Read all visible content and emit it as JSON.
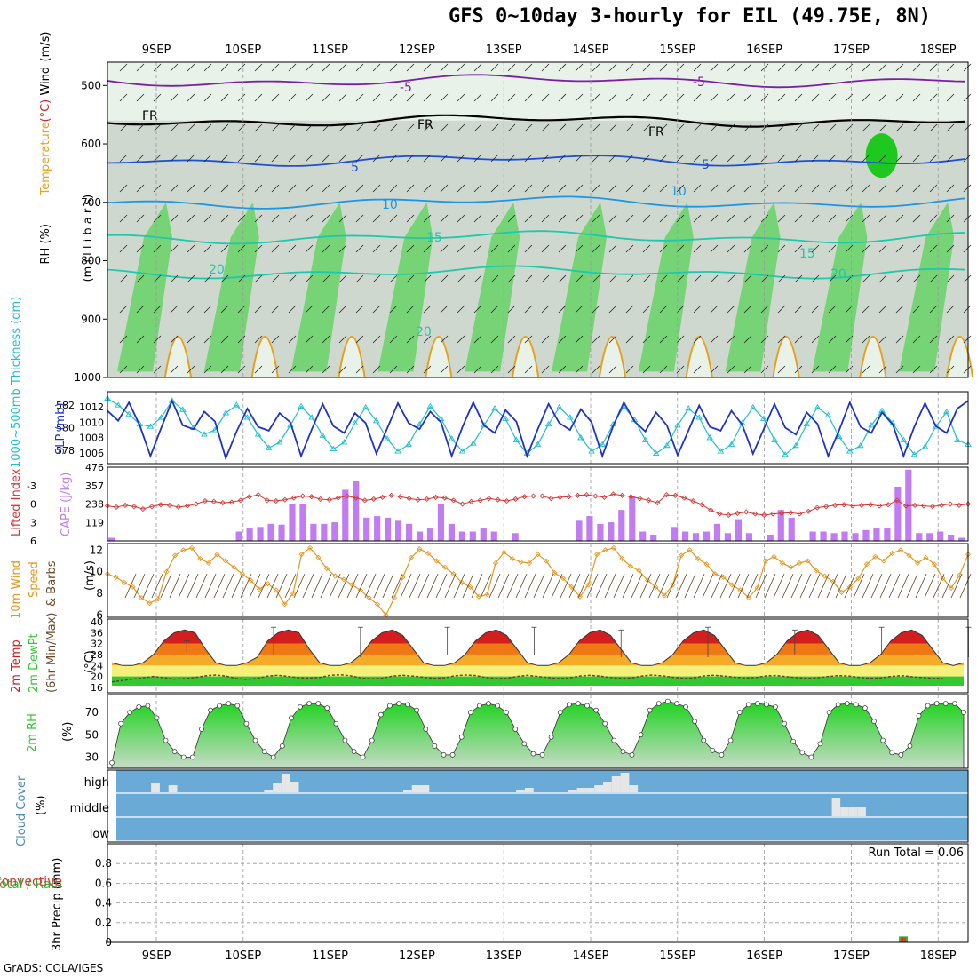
{
  "title": "GFS 0~10day 3-hourly for EIL (49.75E, 8N)",
  "credit": "GrADS: COLA/IGES",
  "colors": {
    "rh_light": "#e8f2e8",
    "rh_mid": "#cfd8cf",
    "rh_dark": "#bcc6bc",
    "rh_green": "#6bd46b",
    "rh_bright": "#1ec81e",
    "temp_purple": "#7a1fa8",
    "temp_black": "#000000",
    "temp_blue": "#1e50d2",
    "temp_lightblue": "#1e96e6",
    "temp_cyan": "#1ec8aa",
    "temp_orange": "#e6a01e",
    "thickness": "#1ebece",
    "slp": "#1e32c8",
    "lifted": "#d83232",
    "cape": "#c07cf0",
    "wind_speed": "#e6961e",
    "barbs": "#6a4a2a",
    "t2m_red": "#d21e1e",
    "t2m_orange": "#f07814",
    "t2m_amber": "#f5aa28",
    "t2m_yellow": "#f5f07a",
    "dew": "#32c832",
    "rh2m": "#1ed21e",
    "cloud_bg": "#6aaad6",
    "cloud_bar": "#e6e6e6",
    "precip_total": "#32b432",
    "precip_conv": "#e63232"
  },
  "chart_data": [
    {
      "type": "heatmap",
      "name": "profile",
      "ylabel_parts": [
        "RH (%)",
        "Temperature",
        "(°C)",
        "Wind",
        "(m/s)"
      ],
      "ylabel_units": "(m i l l i b a r s)",
      "x_dates_top": [
        "9SEP",
        "10SEP",
        "11SEP",
        "12SEP",
        "13SEP",
        "14SEP",
        "15SEP",
        "16SEP",
        "17SEP",
        "18SEP"
      ],
      "y_ticks": [
        500,
        600,
        700,
        800,
        900,
        1000
      ],
      "ylim": [
        1000,
        460
      ],
      "isotherm_labels": [
        {
          "text": "-5",
          "level": "-5C"
        },
        {
          "text": "-5",
          "level": "-5C"
        },
        {
          "text": "FR",
          "level": "0C"
        },
        {
          "text": "FR",
          "level": "0C"
        },
        {
          "text": "FR",
          "level": "0C"
        },
        {
          "text": "5",
          "level": "5C"
        },
        {
          "text": "5",
          "level": "5C"
        },
        {
          "text": "10",
          "level": "10C"
        },
        {
          "text": "10",
          "level": "10C"
        },
        {
          "text": "15",
          "level": "15C"
        },
        {
          "text": "15",
          "level": "15C"
        },
        {
          "text": "20",
          "level": "20C"
        },
        {
          "text": "20",
          "level": "20C"
        },
        {
          "text": "20",
          "level": "20C"
        }
      ],
      "isotherms_hpa": {
        "-5C": 492,
        "0C": 560,
        "5C": 628,
        "10C": 700,
        "15C": 760,
        "20C": 820
      }
    },
    {
      "type": "line",
      "name": "thickness_slp",
      "ylabel_left": "1000~500mb Thickness (dm)",
      "ylabel_right": "SLP (mb)",
      "thickness_ticks": [
        578,
        580,
        582
      ],
      "slp_ticks": [
        1006,
        1008,
        1010,
        1012
      ],
      "thickness_ylim": [
        576.8,
        583.2
      ],
      "slp_ylim": [
        1004.6,
        1014
      ],
      "x_days": [
        0,
        0.125,
        0.25,
        0.375,
        0.5,
        0.625,
        0.75,
        0.875,
        1,
        1.125,
        1.25,
        1.375,
        1.5,
        1.625,
        1.75,
        1.875,
        2,
        2.125,
        2.25,
        2.375,
        2.5,
        2.625,
        2.75,
        2.875,
        3,
        3.125,
        3.25,
        3.375,
        3.5,
        3.625,
        3.75,
        3.875,
        4,
        4.125,
        4.25,
        4.375,
        4.5,
        4.625,
        4.75,
        4.875,
        5,
        5.125,
        5.25,
        5.375,
        5.5,
        5.625,
        5.75,
        5.875,
        6,
        6.125,
        6.25,
        6.375,
        6.5,
        6.625,
        6.75,
        6.875,
        7,
        7.125,
        7.25,
        7.375,
        7.5,
        7.625,
        7.75,
        7.875,
        8,
        8.125,
        8.25,
        8.375,
        8.5,
        8.625,
        8.75,
        8.875,
        9,
        9.125,
        9.25,
        9.375,
        9.5,
        9.625,
        9.75,
        9.875,
        10
      ],
      "slp": [
        1011.5,
        1010.2,
        1012.6,
        1009.6,
        1005.6,
        1009.3,
        1012.8,
        1009.6,
        1009.1,
        1011.4,
        1010.1,
        1005.3,
        1008.8,
        1011.8,
        1009.4,
        1008.9,
        1011.2,
        1010.0,
        1005.6,
        1009.1,
        1012.4,
        1009.5,
        1008.6,
        1011.2,
        1009.9,
        1005.9,
        1009.2,
        1012.5,
        1009.9,
        1009.1,
        1011.4,
        1010.0,
        1005.6,
        1009.4,
        1012.6,
        1009.6,
        1008.6,
        1011.6,
        1010.1,
        1005.6,
        1009.1,
        1012.4,
        1009.9,
        1009.0,
        1011.7,
        1010.0,
        1005.6,
        1009.5,
        1012.6,
        1010.1,
        1008.8,
        1011.3,
        1009.6,
        1005.7,
        1008.9,
        1012.2,
        1009.4,
        1008.9,
        1011.5,
        1009.7,
        1005.9,
        1009.1,
        1012.4,
        1009.3,
        1008.4,
        1011.3,
        1009.8,
        1005.6,
        1008.9,
        1012.6,
        1009.4,
        1008.6,
        1011.3,
        1009.7,
        1005.6,
        1009.4,
        1012.5,
        1009.5,
        1008.6,
        1011.8,
        1012.8
      ],
      "thickness": [
        582.6,
        582.0,
        581.2,
        580.3,
        580.1,
        580.9,
        582.4,
        581.6,
        580.0,
        579.4,
        579.8,
        581.3,
        582.0,
        580.9,
        579.4,
        578.2,
        578.7,
        580.2,
        581.9,
        580.9,
        579.3,
        578.1,
        578.7,
        580.4,
        581.8,
        580.6,
        579.0,
        577.9,
        578.5,
        580.3,
        581.9,
        580.8,
        579.0,
        577.9,
        578.6,
        580.2,
        581.7,
        580.8,
        578.9,
        577.7,
        578.5,
        580.3,
        581.8,
        580.9,
        579.1,
        577.9,
        578.5,
        580.3,
        581.9,
        580.7,
        578.9,
        577.7,
        578.4,
        580.2,
        581.7,
        580.9,
        579.1,
        577.9,
        578.5,
        580.4,
        581.8,
        580.8,
        578.9,
        577.6,
        578.4,
        580.3,
        581.8,
        581.1,
        579.2,
        577.9,
        578.4,
        580.2,
        581.5,
        580.4,
        578.9,
        577.6,
        578.3,
        580.1,
        581.4,
        578.9,
        578.5
      ]
    },
    {
      "type": "bar",
      "name": "lifted_cape",
      "ylabel_left": "Lifted Index",
      "ylabel_right": "CAPE (J/kg)",
      "li_ticks": [
        -3,
        0,
        3,
        6
      ],
      "cape_ticks": [
        119,
        238,
        357,
        476
      ],
      "li_ylim": [
        6,
        -6
      ],
      "cape_ylim": [
        0,
        476
      ],
      "cape": [
        20,
        0,
        0,
        0,
        0,
        0,
        0,
        0,
        0,
        0,
        0,
        0,
        60,
        80,
        90,
        110,
        105,
        240,
        240,
        110,
        110,
        120,
        330,
        390,
        150,
        160,
        150,
        130,
        110,
        60,
        80,
        240,
        110,
        60,
        60,
        80,
        60,
        0,
        50,
        0,
        0,
        0,
        0,
        0,
        130,
        160,
        110,
        120,
        200,
        290,
        60,
        40,
        0,
        90,
        60,
        50,
        60,
        110,
        50,
        140,
        50,
        0,
        40,
        200,
        150,
        0,
        60,
        60,
        50,
        60,
        50,
        70,
        80,
        80,
        350,
        460,
        50,
        50,
        60,
        40,
        20
      ],
      "lifted_index": [
        0.3,
        0.5,
        0.2,
        0.4,
        0.8,
        0.4,
        0.1,
        0.2,
        0.5,
        0.3,
        0.0,
        -0.5,
        -0.4,
        -0.2,
        -0.3,
        -0.6,
        -1.2,
        -1.5,
        -0.6,
        -0.5,
        -0.7,
        -1.0,
        -1.3,
        -1.2,
        -0.8,
        -0.7,
        -1.0,
        -1.3,
        -1.0,
        -0.6,
        -0.8,
        -1.1,
        -1.4,
        -1.2,
        -0.9,
        -0.7,
        -0.8,
        -1.1,
        -1.0,
        -0.6,
        0.0,
        -0.4,
        -0.6,
        -0.9,
        -0.7,
        -0.5,
        -0.8,
        -1.2,
        -1.3,
        -1.3,
        -0.9,
        -1.1,
        -1.2,
        -1.4,
        -1.5,
        -1.3,
        -1.1,
        -1.6,
        -1.4,
        -1.2,
        -0.9,
        -0.6,
        -0.2,
        -1.5,
        -1.4,
        -1.0,
        -0.5,
        0.1,
        1.0,
        1.6,
        1.8,
        1.5,
        1.3,
        1.6,
        1.8,
        1.6,
        1.5,
        1.4,
        1.6,
        1.2,
        0.6,
        0.4,
        0.2,
        0.1,
        0.3,
        0.2,
        0.1,
        0.3,
        0.1,
        -0.6,
        0.3,
        0.2,
        0.3,
        0.4,
        0.2,
        0.0,
        0.2,
        0.0
      ]
    },
    {
      "type": "line",
      "name": "wind10m",
      "ylabel_parts": [
        "10m Wind",
        "Speed",
        "& Barbs",
        "(m/s)"
      ],
      "ticks": [
        6,
        8,
        10,
        12
      ],
      "ylim": [
        5.8,
        12.6
      ],
      "speed": [
        9.8,
        9.5,
        9.0,
        8.6,
        7.6,
        7.1,
        7.5,
        10.0,
        11.5,
        12.0,
        12.2,
        11.2,
        10.8,
        11.6,
        11.0,
        10.4,
        9.8,
        9.2,
        8.4,
        8.9,
        8.3,
        7.0,
        8.0,
        11.6,
        12.2,
        11.3,
        10.3,
        9.6,
        9.3,
        8.8,
        8.3,
        7.6,
        7.0,
        6.0,
        7.6,
        9.5,
        11.3,
        12.1,
        11.7,
        11.0,
        10.4,
        9.8,
        9.0,
        8.6,
        7.7,
        7.9,
        10.8,
        11.8,
        11.2,
        10.9,
        10.8,
        11.6,
        11.0,
        9.9,
        9.4,
        8.6,
        7.7,
        8.8,
        11.6,
        12.0,
        12.2,
        11.2,
        10.5,
        10.1,
        9.2,
        8.6,
        7.8,
        8.8,
        11.5,
        12.0,
        11.2,
        10.7,
        9.8,
        9.5,
        8.8,
        8.3,
        7.6,
        8.5,
        11.0,
        11.4,
        10.8,
        10.4,
        10.8,
        11.0,
        10.1,
        9.6,
        9.1,
        8.1,
        8.6,
        9.4,
        10.7,
        11.4,
        11.0,
        11.7,
        12.0,
        11.5,
        10.8,
        11.3,
        10.7,
        9.4,
        8.5,
        9.7,
        11.6
      ]
    },
    {
      "type": "area",
      "name": "temp2m",
      "ylabel_parts": [
        "2m Temp",
        "2m DewPt",
        "(6hr Min/Max)",
        "(°C)"
      ],
      "ticks": [
        16,
        20,
        24,
        28,
        32,
        36,
        40
      ],
      "ylim": [
        14,
        41
      ],
      "temp": [
        25,
        24,
        24,
        25,
        28,
        33,
        36,
        37,
        36,
        30,
        25,
        24,
        24,
        25,
        27,
        33,
        36,
        37,
        36,
        30,
        25,
        24,
        24,
        25,
        28,
        33,
        36,
        37,
        35,
        30,
        25,
        24,
        24,
        25,
        28,
        33,
        36,
        37,
        35,
        30,
        25,
        24,
        24,
        25,
        28,
        33,
        36,
        37,
        35,
        30,
        25,
        24,
        24,
        25,
        28,
        33,
        36,
        37,
        35,
        30,
        25,
        24,
        24,
        25,
        28,
        33,
        36,
        37,
        35,
        30,
        25,
        24,
        24,
        25,
        28,
        33,
        36,
        37,
        35,
        30,
        25,
        24,
        25
      ],
      "dewpoint": [
        18,
        18.5,
        19,
        19.5,
        20,
        19.5,
        19,
        19.2,
        19.6,
        20.2,
        20.5,
        20.1,
        19.2,
        18.9,
        19.3,
        20.1,
        20.4,
        20.0,
        19.5,
        19.4,
        19.6,
        20.4,
        20.6,
        20.2,
        19.4,
        19.1,
        19.3,
        20.1,
        20.4,
        20.1,
        19.7,
        19.3,
        19.5,
        20.2,
        20.5,
        20.3,
        19.6,
        19.2,
        19.3,
        20.0,
        20.4,
        20.0,
        19.6,
        19.2,
        19.4,
        20.1,
        20.4,
        20.1,
        19.6,
        19.3,
        19.4,
        20.1,
        20.5,
        20.2,
        19.7,
        19.3,
        19.4,
        20.2,
        20.4,
        20.1,
        19.7,
        19.4,
        19.6,
        20.2,
        20.3,
        19.9,
        19.5,
        19.3,
        19.5,
        20.0,
        20.3,
        20.1,
        19.6,
        19.3,
        19.4,
        20.0,
        20.3,
        19.9,
        19.6,
        19.3,
        19.2
      ],
      "max_marks": [
        33,
        38,
        38,
        38,
        38,
        37,
        38,
        37,
        38,
        38
      ],
      "min_marks": [
        29,
        28,
        27,
        28,
        28,
        27,
        27,
        28,
        28,
        27
      ]
    },
    {
      "type": "area",
      "name": "rh2m",
      "ylabel": "2m RH",
      "units": "(%)",
      "ticks": [
        30,
        50,
        70
      ],
      "ylim": [
        20,
        86
      ],
      "rh": [
        25,
        60,
        70,
        75,
        76,
        65,
        45,
        35,
        30,
        30,
        55,
        72,
        76,
        78,
        76,
        60,
        45,
        35,
        30,
        40,
        65,
        75,
        78,
        78,
        74,
        60,
        45,
        35,
        30,
        45,
        68,
        76,
        78,
        77,
        72,
        55,
        40,
        32,
        32,
        48,
        70,
        76,
        78,
        76,
        70,
        55,
        42,
        33,
        32,
        48,
        70,
        77,
        78,
        76,
        72,
        60,
        45,
        35,
        32,
        50,
        72,
        78,
        80,
        78,
        75,
        62,
        45,
        36,
        32,
        45,
        70,
        77,
        78,
        77,
        75,
        60,
        44,
        34,
        30,
        42,
        70,
        77,
        78,
        77,
        74,
        62,
        45,
        34,
        32,
        40,
        67,
        76,
        78,
        78,
        78,
        70
      ]
    },
    {
      "type": "bar",
      "name": "cloud",
      "ylabel_parts": [
        "Cloud Cover",
        "(%)"
      ],
      "levels": [
        "high",
        "middle",
        "low"
      ],
      "high": [
        0,
        0,
        0,
        0,
        10,
        0,
        8,
        0,
        0,
        0,
        0,
        0,
        0,
        0,
        0,
        0,
        0,
        3,
        10,
        20,
        12,
        0,
        0,
        0,
        0,
        0,
        0,
        0,
        0,
        0,
        0,
        0,
        0,
        2,
        8,
        8,
        0,
        0,
        0,
        0,
        0,
        0,
        0,
        0,
        0,
        0,
        2,
        5,
        0,
        0,
        0,
        0,
        2,
        5,
        5,
        8,
        12,
        18,
        22,
        8,
        0,
        0,
        0,
        0,
        0,
        0,
        0,
        0,
        0,
        0,
        0,
        0,
        0,
        0,
        0,
        0,
        0,
        0,
        0,
        0,
        0,
        0,
        0,
        0,
        0,
        0,
        0,
        0,
        0,
        0,
        0,
        0,
        0,
        0,
        0,
        0,
        0,
        0
      ],
      "middle": [
        0,
        0,
        0,
        0,
        0,
        0,
        0,
        0,
        0,
        0,
        0,
        0,
        0,
        0,
        0,
        0,
        0,
        0,
        0,
        0,
        0,
        0,
        0,
        0,
        0,
        0,
        0,
        0,
        0,
        0,
        0,
        0,
        0,
        0,
        0,
        0,
        0,
        0,
        0,
        0,
        0,
        0,
        0,
        0,
        0,
        0,
        0,
        0,
        0,
        0,
        0,
        0,
        0,
        0,
        0,
        0,
        0,
        0,
        0,
        0,
        0,
        0,
        0,
        0,
        0,
        0,
        0,
        0,
        0,
        0,
        0,
        0,
        0,
        0,
        0,
        0,
        0,
        0,
        0,
        0,
        0,
        0,
        0,
        0,
        20,
        10,
        10,
        10,
        0,
        0,
        0,
        0,
        0,
        0,
        0,
        0,
        0,
        0,
        0,
        0
      ],
      "low": [
        0,
        0,
        0,
        0,
        0,
        0,
        0,
        0,
        0,
        0,
        0,
        0,
        0,
        0,
        0,
        0,
        0,
        0,
        0,
        0,
        0,
        0,
        0,
        0,
        0,
        0,
        0,
        0,
        0,
        0,
        0,
        0,
        0,
        0,
        0,
        0,
        0,
        0,
        0,
        0,
        0,
        0,
        0,
        0,
        0,
        0,
        0,
        0,
        0,
        0,
        0,
        0,
        0,
        0,
        0,
        0,
        0,
        0,
        0,
        0,
        0,
        0,
        0,
        0,
        0,
        0,
        0,
        0,
        0,
        0,
        0,
        0,
        0,
        0,
        0,
        0,
        0,
        0,
        0,
        0,
        0,
        0,
        0,
        0,
        0,
        0,
        0,
        0,
        0,
        0,
        0,
        0,
        0,
        0,
        0,
        0,
        0,
        0
      ]
    },
    {
      "type": "bar",
      "name": "precip",
      "ylabel_parts": [
        "Total / Rain",
        "Convective",
        "3hr Precip",
        "(mm)"
      ],
      "ticks": [
        "0",
        "0.2",
        "0.4",
        "0.6",
        "0.8"
      ],
      "tick_values": [
        0,
        0.2,
        0.4,
        0.6,
        0.8
      ],
      "ylim": [
        0,
        1.0
      ],
      "run_total_label": "Run Total = 0.06",
      "x_dates_bottom": [
        "9SEP",
        "10SEP",
        "11SEP",
        "12SEP",
        "13SEP",
        "14SEP",
        "15SEP",
        "16SEP",
        "17SEP",
        "18SEP"
      ],
      "precip_day": 8.6,
      "precip_total": 0.06,
      "precip_convective": 0.06
    }
  ]
}
